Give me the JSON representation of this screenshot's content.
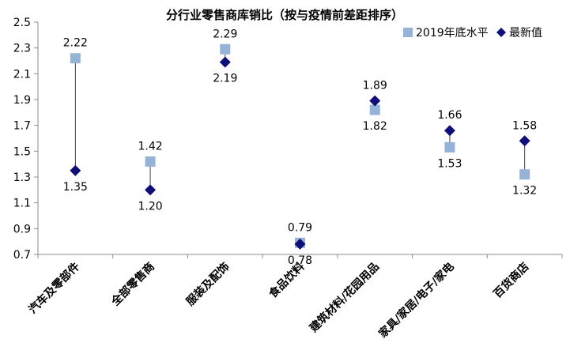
{
  "chart_data": {
    "type": "scatter",
    "title": "分行业零售商库销比（按与疫情前差距排序）",
    "categories": [
      "汽车及零部件",
      "全部零售商",
      "服装及配饰",
      "食品饮料",
      "建筑材料/花园用品",
      "家具/家居/电子/家电",
      "百货商店"
    ],
    "series": [
      {
        "name": "2019年底水平",
        "values": [
          2.22,
          1.42,
          2.29,
          0.79,
          1.82,
          1.53,
          1.32
        ],
        "labels": [
          "2.22",
          "1.42",
          "2.29",
          "0.79",
          "1.82",
          "1.53",
          "1.32"
        ],
        "color": "#95B3D7",
        "marker": "square"
      },
      {
        "name": "最新值",
        "values": [
          1.35,
          1.2,
          2.19,
          0.78,
          1.89,
          1.66,
          1.58
        ],
        "labels": [
          "1.35",
          "1.20",
          "2.19",
          "0.78",
          "1.89",
          "1.66",
          "1.58"
        ],
        "color": "#0F0F7A",
        "marker": "diamond"
      }
    ],
    "ylim": [
      0.7,
      2.5
    ],
    "yticks": [
      "0.7",
      "0.9",
      "1.1",
      "1.3",
      "1.5",
      "1.7",
      "1.9",
      "2.1",
      "2.3",
      "2.5"
    ],
    "grid": false,
    "legend": "top-right"
  }
}
